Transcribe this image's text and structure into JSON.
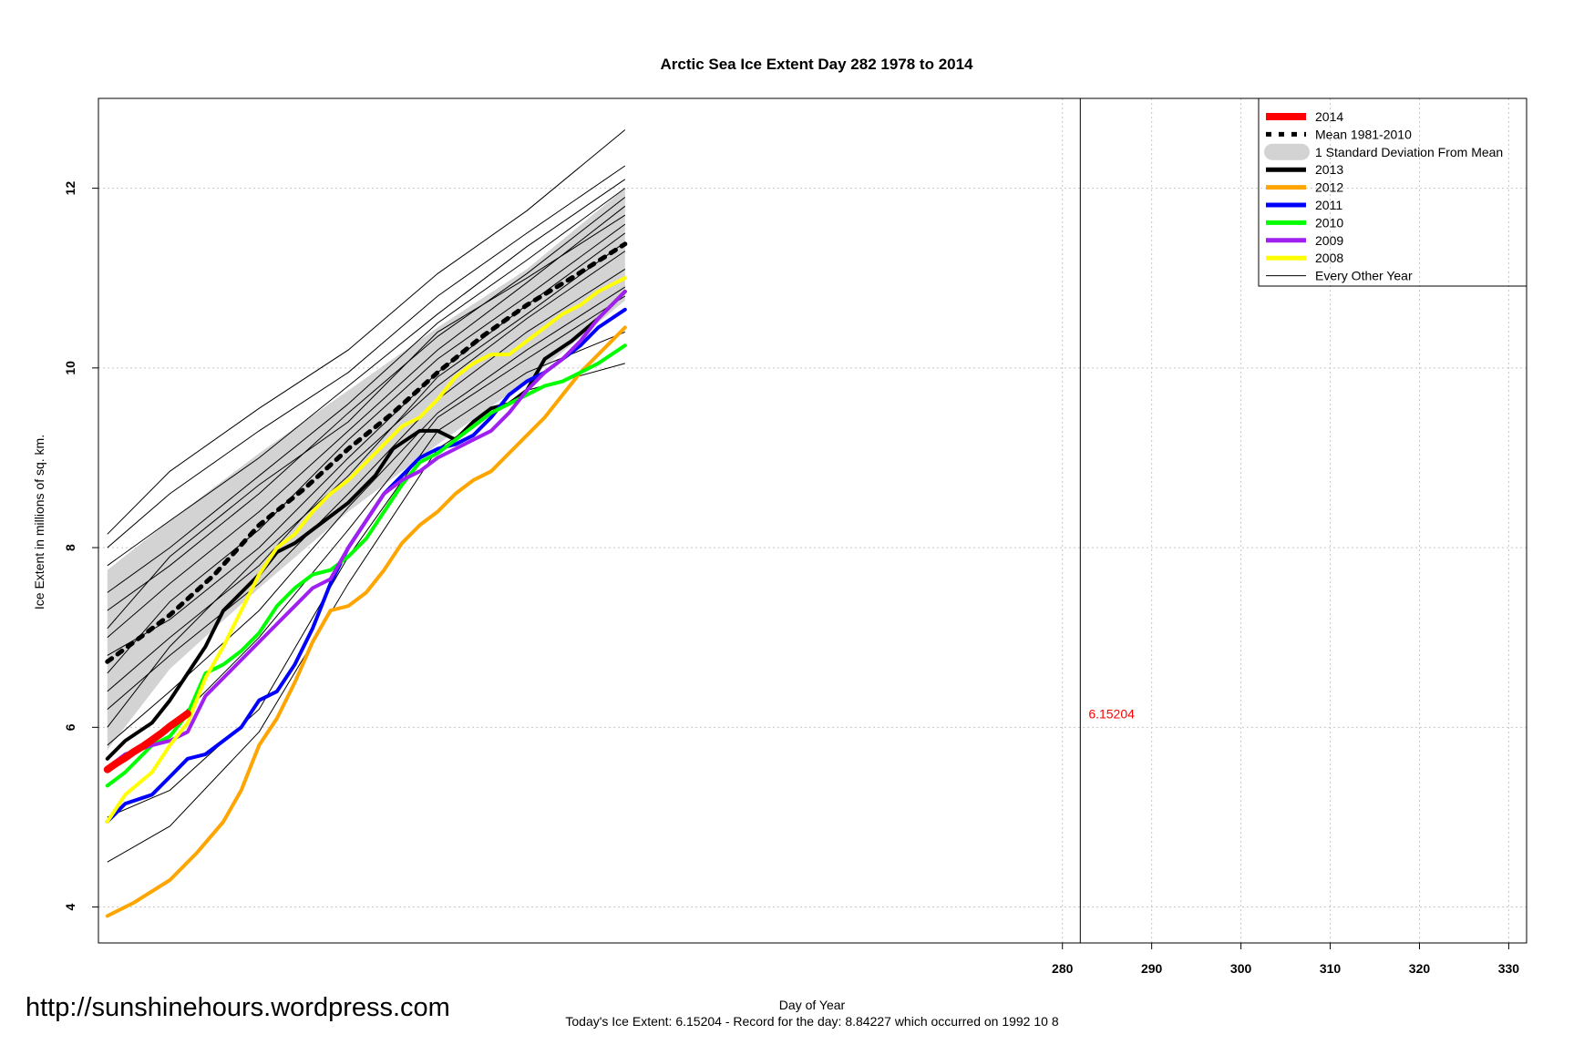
{
  "chart_data": {
    "type": "line",
    "title": "Arctic Sea Ice Extent Day 282 1978 to 2014",
    "xlabel": "Day of Year",
    "ylabel": "Ice Extent in millions of sq. km.",
    "xlim": [
      172,
      332
    ],
    "ylim": [
      3.6,
      13.0
    ],
    "xticks": [
      280,
      290,
      300,
      310,
      320,
      330
    ],
    "yticks": [
      4,
      6,
      8,
      10,
      12
    ],
    "grid": true,
    "legend_position": "top-right",
    "current_day": 282,
    "current_value_label": "6.15204",
    "footer": "Today's Ice Extent: 6.15204  - Record for the day: 8.84227 which occurred on 1992 10 8",
    "sd_band": {
      "name": "1 Standard Deviation From Mean",
      "color": "#d3d3d3",
      "x": [
        173,
        180,
        190,
        200,
        210,
        220,
        231
      ],
      "upper": [
        7.75,
        8.3,
        9.05,
        9.75,
        10.45,
        11.1,
        12.0
      ],
      "lower": [
        5.75,
        6.65,
        7.55,
        8.4,
        9.15,
        9.85,
        10.75
      ]
    },
    "series": [
      {
        "name": "Mean 1981-2010",
        "color": "#000000",
        "style": "dotted",
        "x": [
          173,
          176,
          180,
          185,
          190,
          195,
          200,
          205,
          210,
          215,
          220,
          225,
          231
        ],
        "values": [
          6.73,
          6.95,
          7.25,
          7.7,
          8.25,
          8.65,
          9.1,
          9.5,
          9.95,
          10.35,
          10.7,
          11.0,
          11.38
        ]
      },
      {
        "name": "2013",
        "color": "#000000",
        "x": [
          173,
          175,
          178,
          180,
          182,
          184,
          186,
          188,
          190,
          192,
          194,
          196,
          198,
          200,
          203,
          205,
          208,
          210,
          212,
          214,
          216,
          218,
          220,
          222,
          225,
          228,
          231
        ],
        "values": [
          5.65,
          5.85,
          6.05,
          6.3,
          6.6,
          6.9,
          7.3,
          7.5,
          7.7,
          7.95,
          8.05,
          8.2,
          8.35,
          8.5,
          8.8,
          9.1,
          9.3,
          9.3,
          9.2,
          9.4,
          9.55,
          9.6,
          9.75,
          10.1,
          10.3,
          10.55,
          10.85
        ]
      },
      {
        "name": "2012",
        "color": "#ffa500",
        "x": [
          173,
          176,
          180,
          183,
          186,
          188,
          190,
          192,
          194,
          196,
          198,
          200,
          202,
          204,
          206,
          208,
          210,
          212,
          214,
          216,
          218,
          220,
          222,
          224,
          226,
          228,
          231
        ],
        "values": [
          3.9,
          4.05,
          4.3,
          4.6,
          4.95,
          5.3,
          5.8,
          6.1,
          6.5,
          6.95,
          7.3,
          7.35,
          7.5,
          7.75,
          8.05,
          8.25,
          8.4,
          8.6,
          8.75,
          8.85,
          9.05,
          9.25,
          9.45,
          9.7,
          9.95,
          10.15,
          10.45
        ]
      },
      {
        "name": "2011",
        "color": "#0000ff",
        "x": [
          173,
          175,
          178,
          180,
          182,
          184,
          186,
          188,
          190,
          192,
          194,
          196,
          198,
          200,
          202,
          204,
          206,
          208,
          210,
          212,
          214,
          216,
          218,
          220,
          222,
          224,
          226,
          228,
          231
        ],
        "values": [
          4.95,
          5.15,
          5.25,
          5.45,
          5.65,
          5.7,
          5.85,
          6.0,
          6.3,
          6.4,
          6.7,
          7.1,
          7.6,
          8.0,
          8.3,
          8.6,
          8.8,
          9.0,
          9.1,
          9.15,
          9.25,
          9.45,
          9.7,
          9.85,
          9.95,
          10.1,
          10.25,
          10.45,
          10.65
        ]
      },
      {
        "name": "2010",
        "color": "#00ff00",
        "x": [
          173,
          175,
          178,
          180,
          182,
          184,
          186,
          188,
          190,
          192,
          194,
          196,
          198,
          200,
          202,
          204,
          206,
          208,
          210,
          212,
          214,
          216,
          218,
          220,
          222,
          224,
          226,
          228,
          231
        ],
        "values": [
          5.35,
          5.5,
          5.8,
          5.9,
          6.15,
          6.6,
          6.7,
          6.85,
          7.05,
          7.35,
          7.55,
          7.7,
          7.75,
          7.9,
          8.1,
          8.4,
          8.7,
          8.95,
          9.05,
          9.2,
          9.35,
          9.5,
          9.6,
          9.7,
          9.8,
          9.85,
          9.95,
          10.05,
          10.25
        ]
      },
      {
        "name": "2009",
        "color": "#a020f0",
        "x": [
          173,
          175,
          178,
          180,
          182,
          184,
          186,
          188,
          190,
          192,
          194,
          196,
          198,
          200,
          202,
          204,
          206,
          208,
          210,
          212,
          214,
          216,
          218,
          220,
          222,
          224,
          226,
          228,
          231
        ],
        "values": [
          5.55,
          5.7,
          5.8,
          5.85,
          5.95,
          6.35,
          6.55,
          6.75,
          6.95,
          7.15,
          7.35,
          7.55,
          7.65,
          8.0,
          8.3,
          8.6,
          8.75,
          8.85,
          9.0,
          9.1,
          9.2,
          9.3,
          9.5,
          9.75,
          9.95,
          10.1,
          10.3,
          10.55,
          10.85
        ]
      },
      {
        "name": "2008",
        "color": "#ffff00",
        "x": [
          173,
          175,
          178,
          180,
          182,
          184,
          186,
          188,
          190,
          192,
          194,
          196,
          198,
          200,
          202,
          204,
          206,
          208,
          210,
          212,
          214,
          216,
          218,
          220,
          222,
          224,
          226,
          228,
          231
        ],
        "values": [
          4.95,
          5.25,
          5.5,
          5.8,
          6.05,
          6.55,
          6.9,
          7.3,
          7.7,
          8.0,
          8.15,
          8.4,
          8.6,
          8.75,
          8.95,
          9.15,
          9.35,
          9.45,
          9.65,
          9.9,
          10.05,
          10.15,
          10.15,
          10.3,
          10.45,
          10.6,
          10.7,
          10.85,
          11.0
        ]
      },
      {
        "name": "2014",
        "color": "#ff0000",
        "x": [
          173,
          174,
          175,
          176,
          177,
          178,
          179,
          180,
          181,
          182
        ],
        "values": [
          5.53,
          5.6,
          5.66,
          5.73,
          5.79,
          5.86,
          5.93,
          6.01,
          6.08,
          6.15204
        ]
      }
    ],
    "other_years_name": "Every Other Year",
    "other_years": [
      {
        "x": [
          173,
          180,
          190,
          200,
          210,
          220,
          231
        ],
        "values": [
          4.5,
          4.9,
          5.95,
          7.6,
          9.1,
          9.75,
          10.05
        ]
      },
      {
        "x": [
          173,
          180,
          190,
          200,
          210,
          220,
          231
        ],
        "values": [
          5.0,
          5.3,
          6.2,
          7.9,
          9.3,
          9.95,
          10.4
        ]
      },
      {
        "x": [
          173,
          180,
          190,
          200,
          210,
          220,
          231
        ],
        "values": [
          5.55,
          6.0,
          7.0,
          8.2,
          9.45,
          10.1,
          10.8
        ]
      },
      {
        "x": [
          173,
          180,
          190,
          200,
          210,
          220,
          231
        ],
        "values": [
          5.8,
          6.4,
          7.3,
          8.45,
          9.5,
          10.2,
          10.9
        ]
      },
      {
        "x": [
          173,
          180,
          190,
          200,
          210,
          220,
          231
        ],
        "values": [
          6.2,
          6.8,
          7.6,
          8.6,
          9.65,
          10.4,
          11.1
        ]
      },
      {
        "x": [
          173,
          180,
          190,
          200,
          210,
          220,
          231
        ],
        "values": [
          6.4,
          7.0,
          7.8,
          8.9,
          9.8,
          10.55,
          11.3
        ]
      },
      {
        "x": [
          173,
          180,
          190,
          200,
          210,
          220,
          231
        ],
        "values": [
          6.8,
          7.2,
          8.0,
          9.0,
          9.95,
          10.7,
          11.5
        ]
      },
      {
        "x": [
          173,
          180,
          190,
          200,
          210,
          220,
          231
        ],
        "values": [
          6.6,
          7.4,
          8.2,
          9.2,
          10.1,
          10.8,
          11.6
        ]
      },
      {
        "x": [
          173,
          180,
          190,
          200,
          210,
          220,
          231
        ],
        "values": [
          7.0,
          7.6,
          8.4,
          9.3,
          10.2,
          10.95,
          11.8
        ]
      },
      {
        "x": [
          173,
          180,
          190,
          200,
          210,
          220,
          231
        ],
        "values": [
          7.3,
          7.8,
          8.6,
          9.5,
          10.35,
          11.05,
          11.9
        ]
      },
      {
        "x": [
          173,
          180,
          190,
          200,
          210,
          220,
          231
        ],
        "values": [
          7.5,
          8.0,
          8.8,
          9.6,
          10.5,
          11.2,
          12.0
        ]
      },
      {
        "x": [
          173,
          180,
          190,
          200,
          210,
          220,
          231
        ],
        "values": [
          7.8,
          8.3,
          9.0,
          9.8,
          10.6,
          11.35,
          12.1
        ]
      },
      {
        "x": [
          173,
          180,
          190,
          200,
          210,
          220,
          231
        ],
        "values": [
          8.0,
          8.6,
          9.3,
          9.95,
          10.8,
          11.5,
          12.25
        ]
      },
      {
        "x": [
          173,
          180,
          190,
          200,
          210,
          220,
          231
        ],
        "values": [
          8.15,
          8.85,
          9.55,
          10.2,
          11.05,
          11.75,
          12.65
        ]
      },
      {
        "x": [
          173,
          180,
          190,
          200,
          210,
          220,
          231
        ],
        "values": [
          7.1,
          7.9,
          8.7,
          9.4,
          10.4,
          11.0,
          11.7
        ]
      },
      {
        "x": [
          173,
          180,
          190,
          200,
          210,
          220,
          231
        ],
        "values": [
          6.0,
          6.9,
          7.9,
          8.8,
          9.9,
          10.6,
          11.4
        ]
      }
    ]
  },
  "site_url": "http://sunshinehours.wordpress.com"
}
